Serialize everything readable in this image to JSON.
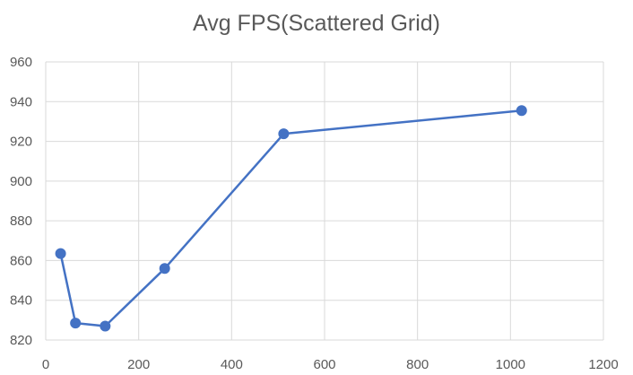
{
  "chart_data": {
    "type": "scatter",
    "title": "Avg FPS(Scattered Grid)",
    "xlabel": "",
    "ylabel": "",
    "xlim": [
      0,
      1200
    ],
    "ylim": [
      820,
      960
    ],
    "x_ticks": [
      0,
      200,
      400,
      600,
      800,
      1000,
      1200
    ],
    "y_ticks": [
      820,
      840,
      860,
      880,
      900,
      920,
      940,
      960
    ],
    "grid": true,
    "legend": "none",
    "line_color": "#4472C4",
    "series": [
      {
        "x": [
          32,
          64,
          128,
          256,
          512,
          1024
        ],
        "y": [
          863.5,
          828.5,
          827.0,
          856.0,
          923.8,
          935.5
        ]
      }
    ]
  }
}
